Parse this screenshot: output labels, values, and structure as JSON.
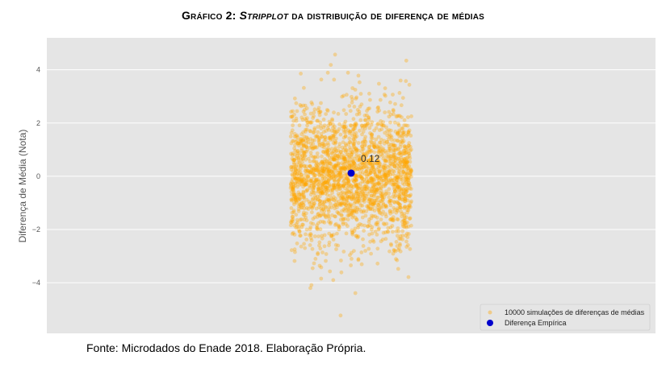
{
  "title": {
    "prefix": "Gráfico 2:",
    "italic": "Stripplot",
    "suffix": "da distribuição de diferença de médias"
  },
  "source": "Fonte: Microdados do Enade 2018. Elaboração Própria.",
  "colors": {
    "background": "#e5e5e5",
    "grid": "#ffffff",
    "simulations": "#ffa500",
    "empirical": "#0000cc"
  },
  "chart_data": {
    "type": "scatter",
    "subtype": "stripplot",
    "title": "Gráfico 2: Stripplot da distribuição de diferença de médias",
    "xlabel": "",
    "ylabel": "Diferença de Média (Nota)",
    "ylim": [
      -5.9,
      5.2
    ],
    "yticks": [
      4,
      2,
      0,
      -2,
      -4
    ],
    "ytick_labels": [
      "4",
      "2",
      "0",
      "−2",
      "−4"
    ],
    "grid": true,
    "legend_position": "lower-right",
    "series": [
      {
        "name": "10000 simulações de diferenças de médias",
        "count": 10000,
        "distribution_center": 0.0,
        "distribution_sd": 1.3,
        "min_value": -5.3,
        "max_value": 4.9
      },
      {
        "name": "Diferença Empírica",
        "values": [
          0.12
        ]
      }
    ],
    "annotations": [
      {
        "text": "0.12",
        "y": 0.12
      }
    ]
  }
}
